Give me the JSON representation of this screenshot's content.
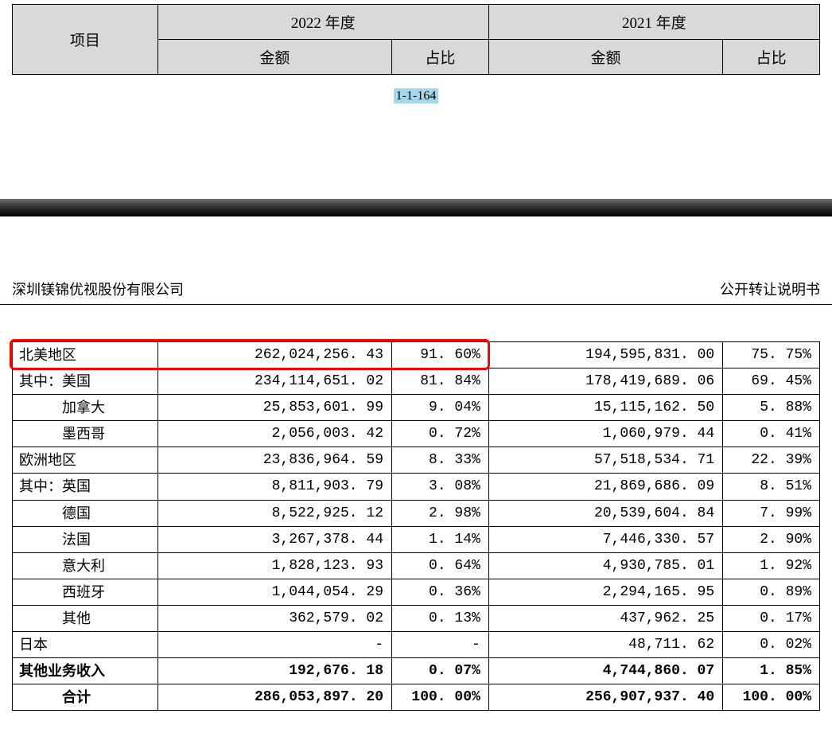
{
  "topHeader": {
    "item": "项目",
    "year2022": "2022 年度",
    "year2021": "2021 年度",
    "amount": "金额",
    "ratio": "占比"
  },
  "pageNumber": "1-1-164",
  "companyName": "深圳镁锦优视股份有限公司",
  "docTitle": "公开转让说明书",
  "highlight": {
    "row_index": 0,
    "color": "#ff0000",
    "border_width": 3,
    "border_radius": 6
  },
  "columns": {
    "widths_pct": [
      18,
      29,
      12,
      29,
      12
    ],
    "alignment": [
      "left",
      "right",
      "right",
      "right",
      "right"
    ]
  },
  "rows": [
    {
      "label": "北美地区",
      "indent": 0,
      "bold": false,
      "amt2022": "262,024,256. 43",
      "pct2022": "91. 60%",
      "amt2021": "194,595,831. 00",
      "pct2021": "75. 75%"
    },
    {
      "label": "其中：美国",
      "indent": 0,
      "bold": false,
      "amt2022": "234,114,651. 02",
      "pct2022": "81. 84%",
      "amt2021": "178,419,689. 06",
      "pct2021": "69. 45%"
    },
    {
      "label": "加拿大",
      "indent": 2,
      "bold": false,
      "amt2022": "25,853,601. 99",
      "pct2022": "9. 04%",
      "amt2021": "15,115,162. 50",
      "pct2021": "5. 88%"
    },
    {
      "label": "墨西哥",
      "indent": 2,
      "bold": false,
      "amt2022": "2,056,003. 42",
      "pct2022": "0. 72%",
      "amt2021": "1,060,979. 44",
      "pct2021": "0. 41%"
    },
    {
      "label": "欧洲地区",
      "indent": 0,
      "bold": false,
      "amt2022": "23,836,964. 59",
      "pct2022": "8. 33%",
      "amt2021": "57,518,534. 71",
      "pct2021": "22. 39%"
    },
    {
      "label": "其中：英国",
      "indent": 0,
      "bold": false,
      "amt2022": "8,811,903. 79",
      "pct2022": "3. 08%",
      "amt2021": "21,869,686. 09",
      "pct2021": "8. 51%"
    },
    {
      "label": "德国",
      "indent": 2,
      "bold": false,
      "amt2022": "8,522,925. 12",
      "pct2022": "2. 98%",
      "amt2021": "20,539,604. 84",
      "pct2021": "7. 99%"
    },
    {
      "label": "法国",
      "indent": 2,
      "bold": false,
      "amt2022": "3,267,378. 44",
      "pct2022": "1. 14%",
      "amt2021": "7,446,330. 57",
      "pct2021": "2. 90%"
    },
    {
      "label": "意大利",
      "indent": 2,
      "bold": false,
      "amt2022": "1,828,123. 93",
      "pct2022": "0. 64%",
      "amt2021": "4,930,785. 01",
      "pct2021": "1. 92%"
    },
    {
      "label": "西班牙",
      "indent": 2,
      "bold": false,
      "amt2022": "1,044,054. 29",
      "pct2022": "0. 36%",
      "amt2021": "2,294,165. 95",
      "pct2021": "0. 89%"
    },
    {
      "label": "其他",
      "indent": 2,
      "bold": false,
      "amt2022": "362,579. 02",
      "pct2022": "0. 13%",
      "amt2021": "437,962. 25",
      "pct2021": "0. 17%"
    },
    {
      "label": "日本",
      "indent": 0,
      "bold": false,
      "amt2022": "-",
      "pct2022": "-",
      "amt2021": "48,711. 62",
      "pct2021": "0. 02%"
    },
    {
      "label": "其他业务收入",
      "indent": 0,
      "bold": true,
      "amt2022": "192,676. 18",
      "pct2022": "0. 07%",
      "amt2021": "4,744,860. 07",
      "pct2021": "1. 85%"
    },
    {
      "label": "合计",
      "indent": 2,
      "bold": true,
      "amt2022": "286,053,897. 20",
      "pct2022": "100. 00%",
      "amt2021": "256,907,937. 40",
      "pct2021": "100. 00%"
    }
  ]
}
